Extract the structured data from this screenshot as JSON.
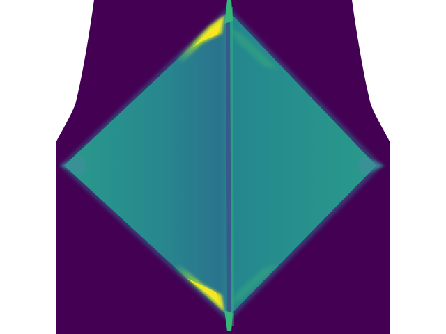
{
  "figure": {
    "colormap": "viridis",
    "colors": {
      "background": "#ffffff",
      "outer_region": "#440154",
      "plateau": "#24868e",
      "plateau_light": "#2a9a8b",
      "plateau_dark": "#2b738e",
      "edge_green": "#5ec962",
      "edge_yellow": "#fde725",
      "edge_blue": "#3b528b"
    }
  }
}
